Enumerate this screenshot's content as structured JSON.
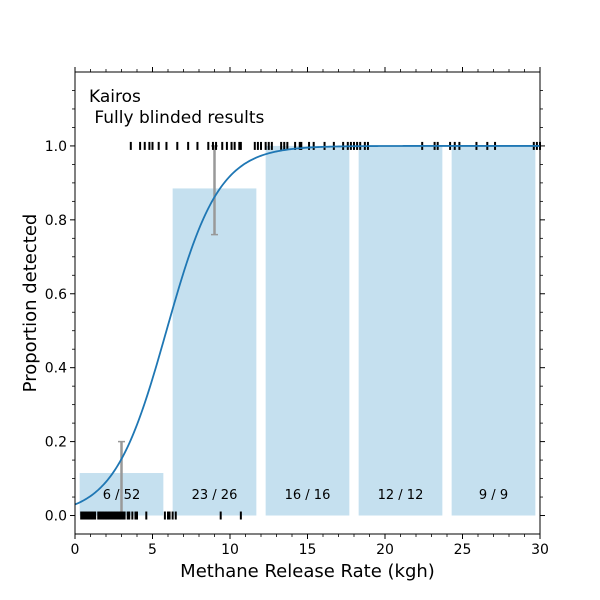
{
  "chart_data": {
    "type": "bar",
    "title": "",
    "xlabel": "Methane Release Rate (kgh)",
    "ylabel": "Proportion detected",
    "xlim": [
      0,
      30
    ],
    "ylim": [
      -0.05,
      1.2
    ],
    "xticks": [
      0,
      5,
      10,
      15,
      20,
      25,
      30
    ],
    "yticks": [
      0.0,
      0.2,
      0.4,
      0.6,
      0.8,
      1.0
    ],
    "xtick_labels": [
      "0",
      "5",
      "10",
      "15",
      "20",
      "25",
      "30"
    ],
    "ytick_labels": [
      "0.0",
      "0.2",
      "0.4",
      "0.6",
      "0.8",
      "1.0"
    ],
    "grid": false,
    "annotation": {
      "line1": "Kairos",
      "line2": " Fully blinded results"
    },
    "colors": {
      "bar": "#c5e0ef",
      "curve": "#1f77b4",
      "errorbar": "#999999",
      "rug": "#000000"
    },
    "bins": [
      {
        "x0": 0.3,
        "x1": 5.7,
        "value": 0.115,
        "label": "6 / 52",
        "err_x": 3.0,
        "err_low": 0.0,
        "err_high": 0.2
      },
      {
        "x0": 6.3,
        "x1": 11.7,
        "value": 0.885,
        "label": "23 / 26",
        "err_x": 9.0,
        "err_low": 0.76,
        "err_high": 1.0
      },
      {
        "x0": 12.3,
        "x1": 17.7,
        "value": 1.0,
        "label": "16 / 16"
      },
      {
        "x0": 18.3,
        "x1": 23.7,
        "value": 1.0,
        "label": "12 / 12"
      },
      {
        "x0": 24.3,
        "x1": 29.7,
        "value": 1.0,
        "label": "9 / 9"
      }
    ],
    "fit_curve": {
      "logistic_x0": 5.9,
      "logistic_k": 0.59,
      "logistic_ymax": 1.0
    },
    "rug_detected": [
      3.6,
      4.2,
      4.5,
      4.8,
      5.0,
      5.4,
      5.9,
      6.6,
      7.3,
      7.9,
      8.6,
      8.9,
      9.1,
      9.5,
      9.8,
      10.1,
      10.3,
      10.6,
      10.7,
      11.6,
      11.8,
      12.0,
      12.3,
      12.5,
      12.7,
      13.3,
      13.5,
      13.7,
      14.2,
      14.5,
      14.6,
      15.1,
      15.4,
      16.1,
      16.7,
      17.3,
      17.6,
      17.8,
      18.0,
      18.2,
      18.4,
      18.7,
      18.9,
      22.4,
      23.2,
      23.4,
      24.2,
      24.5,
      24.8,
      25.9,
      26.6,
      27.1,
      29.6,
      29.8,
      30.0
    ],
    "rug_not_detected": [
      0.4,
      0.5,
      0.6,
      0.7,
      0.8,
      0.9,
      1.0,
      1.1,
      1.2,
      1.3,
      1.5,
      1.6,
      1.7,
      1.8,
      1.9,
      2.0,
      2.1,
      2.2,
      2.3,
      2.4,
      2.5,
      2.6,
      2.7,
      2.8,
      2.9,
      3.0,
      3.1,
      3.2,
      3.4,
      3.5,
      3.7,
      3.9,
      4.0,
      4.6,
      5.8,
      6.0,
      6.1,
      6.3,
      6.5,
      9.4,
      10.7
    ]
  }
}
